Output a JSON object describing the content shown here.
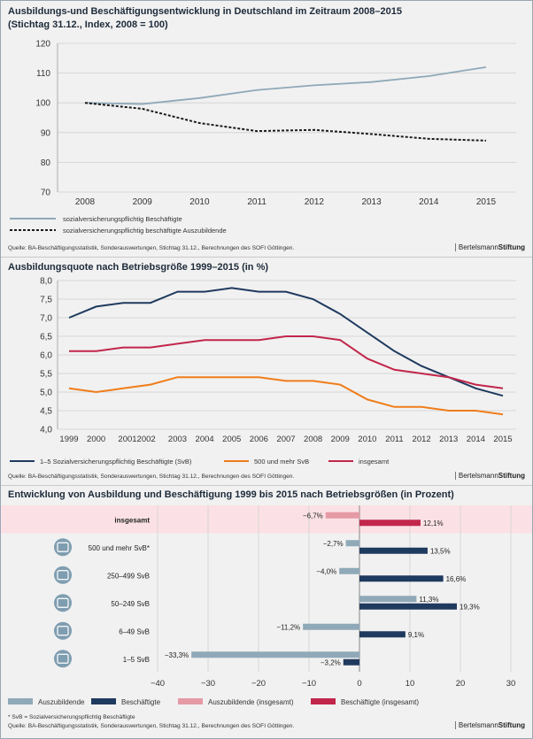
{
  "chart_data": [
    {
      "type": "line",
      "title": "Ausbildungs-und Beschäftigungsentwicklung in Deutschland im Zeitraum 2008–2015",
      "subtitle": "(Stichtag 31.12., Index, 2008 = 100)",
      "categories": [
        "2008",
        "2009",
        "2010",
        "2011",
        "2012",
        "2013",
        "2014",
        "2015"
      ],
      "ylim": [
        70,
        120
      ],
      "yticks": [
        "70",
        "80",
        "90",
        "100",
        "110",
        "120"
      ],
      "series": [
        {
          "name": "sozialversicherungspflichtig Beschäftigte",
          "color": "#8fa9b8",
          "dashed": false,
          "values": [
            100,
            99.6,
            101.6,
            104.3,
            105.9,
            107,
            109,
            112
          ]
        },
        {
          "name": "sozialversicherungspflichtig beschäftigte Auszubildende",
          "color": "#1a1a1a",
          "dashed": true,
          "values": [
            100,
            98,
            93.2,
            90.5,
            90.9,
            89.5,
            87.9,
            87.3
          ]
        }
      ],
      "source": "Quelle: BA-Beschäftigungsstatistik, Sonderauswertungen, Stichtag 31.12., Berechnungen des SOFI Göttingen."
    },
    {
      "type": "line",
      "title": "Ausbildungsquote nach Betriebsgröße 1999–2015 (in %)",
      "categories": [
        "1999",
        "2000",
        "2001",
        "2002",
        "2003",
        "2004",
        "2005",
        "2006",
        "2007",
        "2008",
        "2009",
        "2010",
        "2011",
        "2012",
        "2013",
        "2014",
        "2015"
      ],
      "tick_labels": [
        "1999",
        "2000",
        "20012002",
        "2003",
        "2004",
        "2005",
        "2006",
        "2007",
        "2008",
        "2009",
        "2010",
        "2011",
        "2012",
        "2013",
        "2014",
        "2015"
      ],
      "ylim": [
        4.0,
        8.0
      ],
      "yticks": [
        "4,0",
        "4,5",
        "5,0",
        "5,5",
        "6,0",
        "6,5",
        "7,0",
        "7,5",
        "8,0"
      ],
      "series": [
        {
          "name": "1–5 Sozialversicherungspflichtig Beschäftigte (SvB)",
          "color": "#1f3a5f",
          "values": [
            7.0,
            7.3,
            7.4,
            7.4,
            7.7,
            7.7,
            7.8,
            7.7,
            7.7,
            7.5,
            7.1,
            6.6,
            6.1,
            5.7,
            5.4,
            5.1,
            4.9
          ]
        },
        {
          "name": "500 und mehr SvB",
          "color": "#ef7d1a",
          "values": [
            5.1,
            5.0,
            5.1,
            5.2,
            5.4,
            5.4,
            5.4,
            5.4,
            5.3,
            5.3,
            5.2,
            4.8,
            4.6,
            4.6,
            4.5,
            4.5,
            4.4
          ]
        },
        {
          "name": "insgesamt",
          "color": "#c2264b",
          "values": [
            6.1,
            6.1,
            6.2,
            6.2,
            6.3,
            6.4,
            6.4,
            6.4,
            6.5,
            6.5,
            6.4,
            5.9,
            5.6,
            5.5,
            5.4,
            5.2,
            5.1
          ]
        }
      ],
      "source": "Quelle: BA-Beschäftigungsstatistik, Sonderauswertungen, Stichtag 31.12., Berechnungen des SOFI Göttingen."
    },
    {
      "type": "bar",
      "orientation": "horizontal",
      "title": "Entwicklung von Ausbildung und Beschäftigung 1999 bis 2015 nach Betriebsgrößen (in Prozent)",
      "xlim": [
        -40,
        30
      ],
      "xticks": [
        "−40",
        "−30",
        "−20",
        "−10",
        "0",
        "10",
        "20",
        "30"
      ],
      "categories": [
        "insgesamt",
        "500 und mehr SvB*",
        "250–499 SvB",
        "50–249 SvB",
        "6–49 SvB",
        "1–5 SvB"
      ],
      "series": [
        {
          "name": "Auszubildende",
          "values": [
            -6.7,
            -2.7,
            -4.0,
            11.3,
            -11.2,
            -33.3
          ],
          "labels": [
            "−6,7%",
            "−2,7%",
            "−4,0%",
            "11,3%",
            "−11,2%",
            "−33,3%"
          ]
        },
        {
          "name": "Beschäftigte",
          "values": [
            12.1,
            13.5,
            16.6,
            19.3,
            9.1,
            -3.2
          ],
          "labels": [
            "12,1%",
            "13,5%",
            "16,6%",
            "19,3%",
            "9,1%",
            "−3,2%"
          ]
        }
      ],
      "colors": {
        "azubi": "#8fa9b8",
        "besch": "#1f3a5f",
        "azubi_total": "#e59aa6",
        "besch_total": "#c2264b",
        "highlight": "#fbe1e5"
      },
      "legend": [
        "Auszubildende",
        "Beschäftigte",
        "Auszubildende (insgesamt)",
        "Beschäftigte (insgesamt)"
      ],
      "footnote": "* SvB = Sozialversicherungspflichtig Beschäftigte",
      "source": "Quelle: BA-Beschäftigungsstatistik, Sonderauswertungen, Stichtag 31.12., Berechnungen des SOFI Göttingen."
    }
  ],
  "brand": {
    "light": "Bertelsmann",
    "bold": "Stiftung"
  }
}
